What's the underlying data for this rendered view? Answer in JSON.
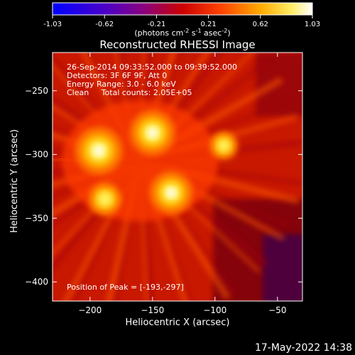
{
  "chart_data": {
    "type": "heatmap",
    "title": "Reconstructed RHESSI Image",
    "xlabel": "Heliocentric X (arcsec)",
    "ylabel": "Heliocentric Y (arcsec)",
    "xlim": [
      -230,
      -30
    ],
    "ylim": [
      -415,
      -220
    ],
    "x_ticks": [
      -200,
      -150,
      -100,
      -50
    ],
    "y_ticks": [
      -250,
      -300,
      -350,
      -400
    ],
    "colorbar": {
      "min": -1.03,
      "max": 1.03,
      "ticks": [
        "-1.03",
        "-0.62",
        "-0.21",
        "0.21",
        "0.62",
        "1.03"
      ],
      "unit_prefix": "(photons cm",
      "unit_exp1": "-2",
      "unit_mid": " s",
      "unit_exp2": "-1",
      "unit_mid2": " asec",
      "unit_exp3": "-2",
      "unit_suffix": ")"
    },
    "annotations": {
      "time_range": "26-Sep-2014 09:33:52.000 to 09:39:52.000",
      "detectors": "Detectors: 3F 6F 9F, Att 0",
      "energy": "Energy Range: 3.0 - 6.0 keV",
      "method": "Clean     Total counts: 2.05E+05",
      "peak": "Position of Peak = [-193,-297]"
    },
    "sources": [
      {
        "x": -193,
        "y": -297,
        "intensity": 1.0
      },
      {
        "x": -150,
        "y": -283,
        "intensity": 0.95
      },
      {
        "x": -135,
        "y": -330,
        "intensity": 0.9
      },
      {
        "x": -188,
        "y": -335,
        "intensity": 0.7
      },
      {
        "x": -93,
        "y": -293,
        "intensity": 0.6
      }
    ]
  },
  "footer": {
    "timestamp": "17-May-2022 14:38"
  }
}
